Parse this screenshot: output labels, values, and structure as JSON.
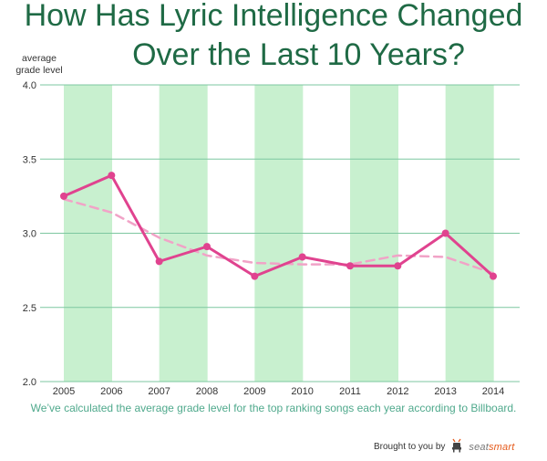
{
  "title_line1": "How Has Lyric Intelligence Changed",
  "title_line2": "Over the Last 10 Years?",
  "y_axis_label": "average grade level",
  "caption": "We’ve calculated the average grade level for the top ranking songs each year according to Billboard.",
  "credit": {
    "prefix": "Brought to you by",
    "brand_main": "seat",
    "brand_accent": "smart",
    "icon": "seat-icon"
  },
  "colors": {
    "title": "#1f6a45",
    "band": "#c8f0cf",
    "grid": "#7dc7a0",
    "line": "#e0438f",
    "trend": "#f1a3c7",
    "caption": "#4fa98c"
  },
  "chart_data": {
    "type": "line",
    "x": [
      "2005",
      "2006",
      "2007",
      "2008",
      "2009",
      "2010",
      "2011",
      "2012",
      "2013",
      "2014"
    ],
    "series": [
      {
        "values": [
          3.25,
          3.39,
          2.81,
          2.91,
          2.71,
          2.84,
          2.78,
          2.78,
          3.0,
          2.71
        ]
      },
      {
        "values": [
          3.23,
          3.14,
          2.97,
          2.85,
          2.8,
          2.79,
          2.79,
          2.85,
          2.84,
          2.73
        ],
        "style": "dashed"
      }
    ],
    "yticks": [
      "2.0",
      "2.5",
      "3.0",
      "3.5",
      "4.0"
    ],
    "ylim": [
      2.0,
      4.0
    ],
    "grid": true,
    "shaded_years": [
      "2005",
      "2007",
      "2009",
      "2011",
      "2013"
    ]
  }
}
